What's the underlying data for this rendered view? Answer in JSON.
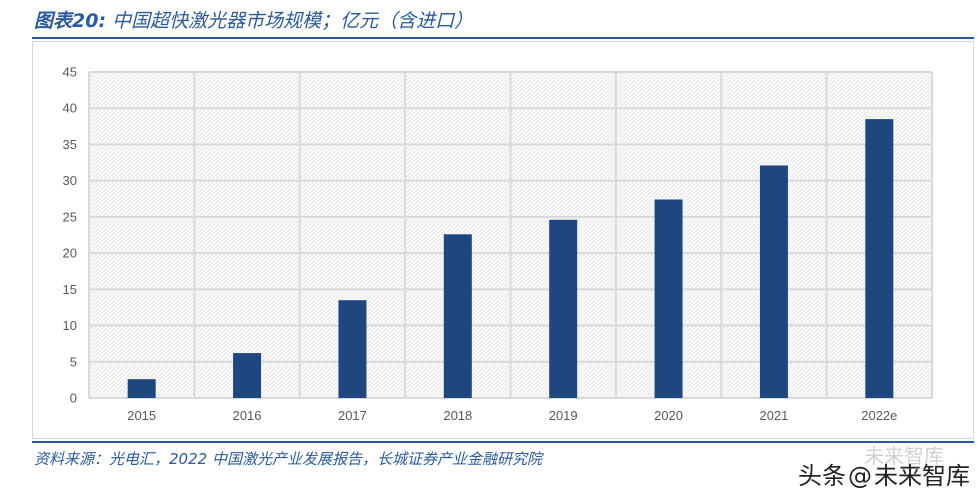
{
  "figure": {
    "label": "图表20:",
    "title": "中国超快激光器市场规模；亿元（含进口）"
  },
  "source": "资料来源：光电汇，2022 中国激光产业发展报告，长城证券产业金融研究院",
  "watermark": {
    "platform": "头条",
    "at": "@",
    "account": "未来智库",
    "ghost": "未来智库"
  },
  "colors": {
    "accent": "#2a5aa0",
    "bar": "#1f477f",
    "grid": "#d9d9d9",
    "hatch": "#e2e2e2"
  },
  "chart_data": {
    "type": "bar",
    "title": "中国超快激光器市场规模；亿元（含进口）",
    "xlabel": "",
    "ylabel": "",
    "categories": [
      "2015",
      "2016",
      "2017",
      "2018",
      "2019",
      "2020",
      "2021",
      "2022e"
    ],
    "values": [
      2.6,
      6.2,
      13.5,
      22.6,
      24.6,
      27.4,
      32.1,
      38.5
    ],
    "ylim": [
      0,
      45
    ],
    "yticks": [
      0,
      5,
      10,
      15,
      20,
      25,
      30,
      35,
      40,
      45
    ],
    "grid": true,
    "legend": "none"
  }
}
